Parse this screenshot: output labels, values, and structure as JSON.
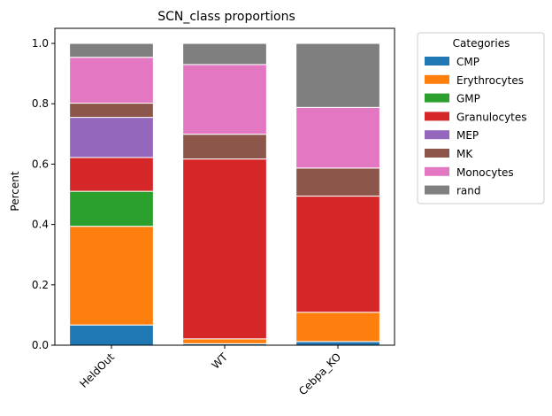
{
  "chart_data": {
    "type": "bar",
    "stacked": true,
    "title": "SCN_class proportions",
    "xlabel": "",
    "ylabel": "Percent",
    "ylim": [
      0,
      1.05
    ],
    "yticks": [
      "0.0",
      "0.2",
      "0.4",
      "0.6",
      "0.8",
      "1.0"
    ],
    "categories": [
      "HeldOut",
      "WT",
      "Cebpa_KO"
    ],
    "legend": {
      "title": "Categories",
      "placement": "outside-upper-right"
    },
    "grid": false,
    "series": [
      {
        "name": "CMP",
        "color": "#1f77b4",
        "values": [
          0.067,
          0.005,
          0.012
        ]
      },
      {
        "name": "Erythrocytes",
        "color": "#ff7f0e",
        "values": [
          0.327,
          0.016,
          0.097
        ]
      },
      {
        "name": "GMP",
        "color": "#2ca02c",
        "values": [
          0.116,
          0.0,
          0.0
        ]
      },
      {
        "name": "Granulocytes",
        "color": "#d62728",
        "values": [
          0.112,
          0.596,
          0.385
        ]
      },
      {
        "name": "MEP",
        "color": "#9467bd",
        "values": [
          0.133,
          0.0,
          0.0
        ]
      },
      {
        "name": "MK",
        "color": "#8c564b",
        "values": [
          0.047,
          0.082,
          0.093
        ]
      },
      {
        "name": "Monocytes",
        "color": "#e377c2",
        "values": [
          0.152,
          0.231,
          0.201
        ]
      },
      {
        "name": "rand",
        "color": "#7f7f7f",
        "values": [
          0.046,
          0.07,
          0.212
        ]
      }
    ]
  }
}
